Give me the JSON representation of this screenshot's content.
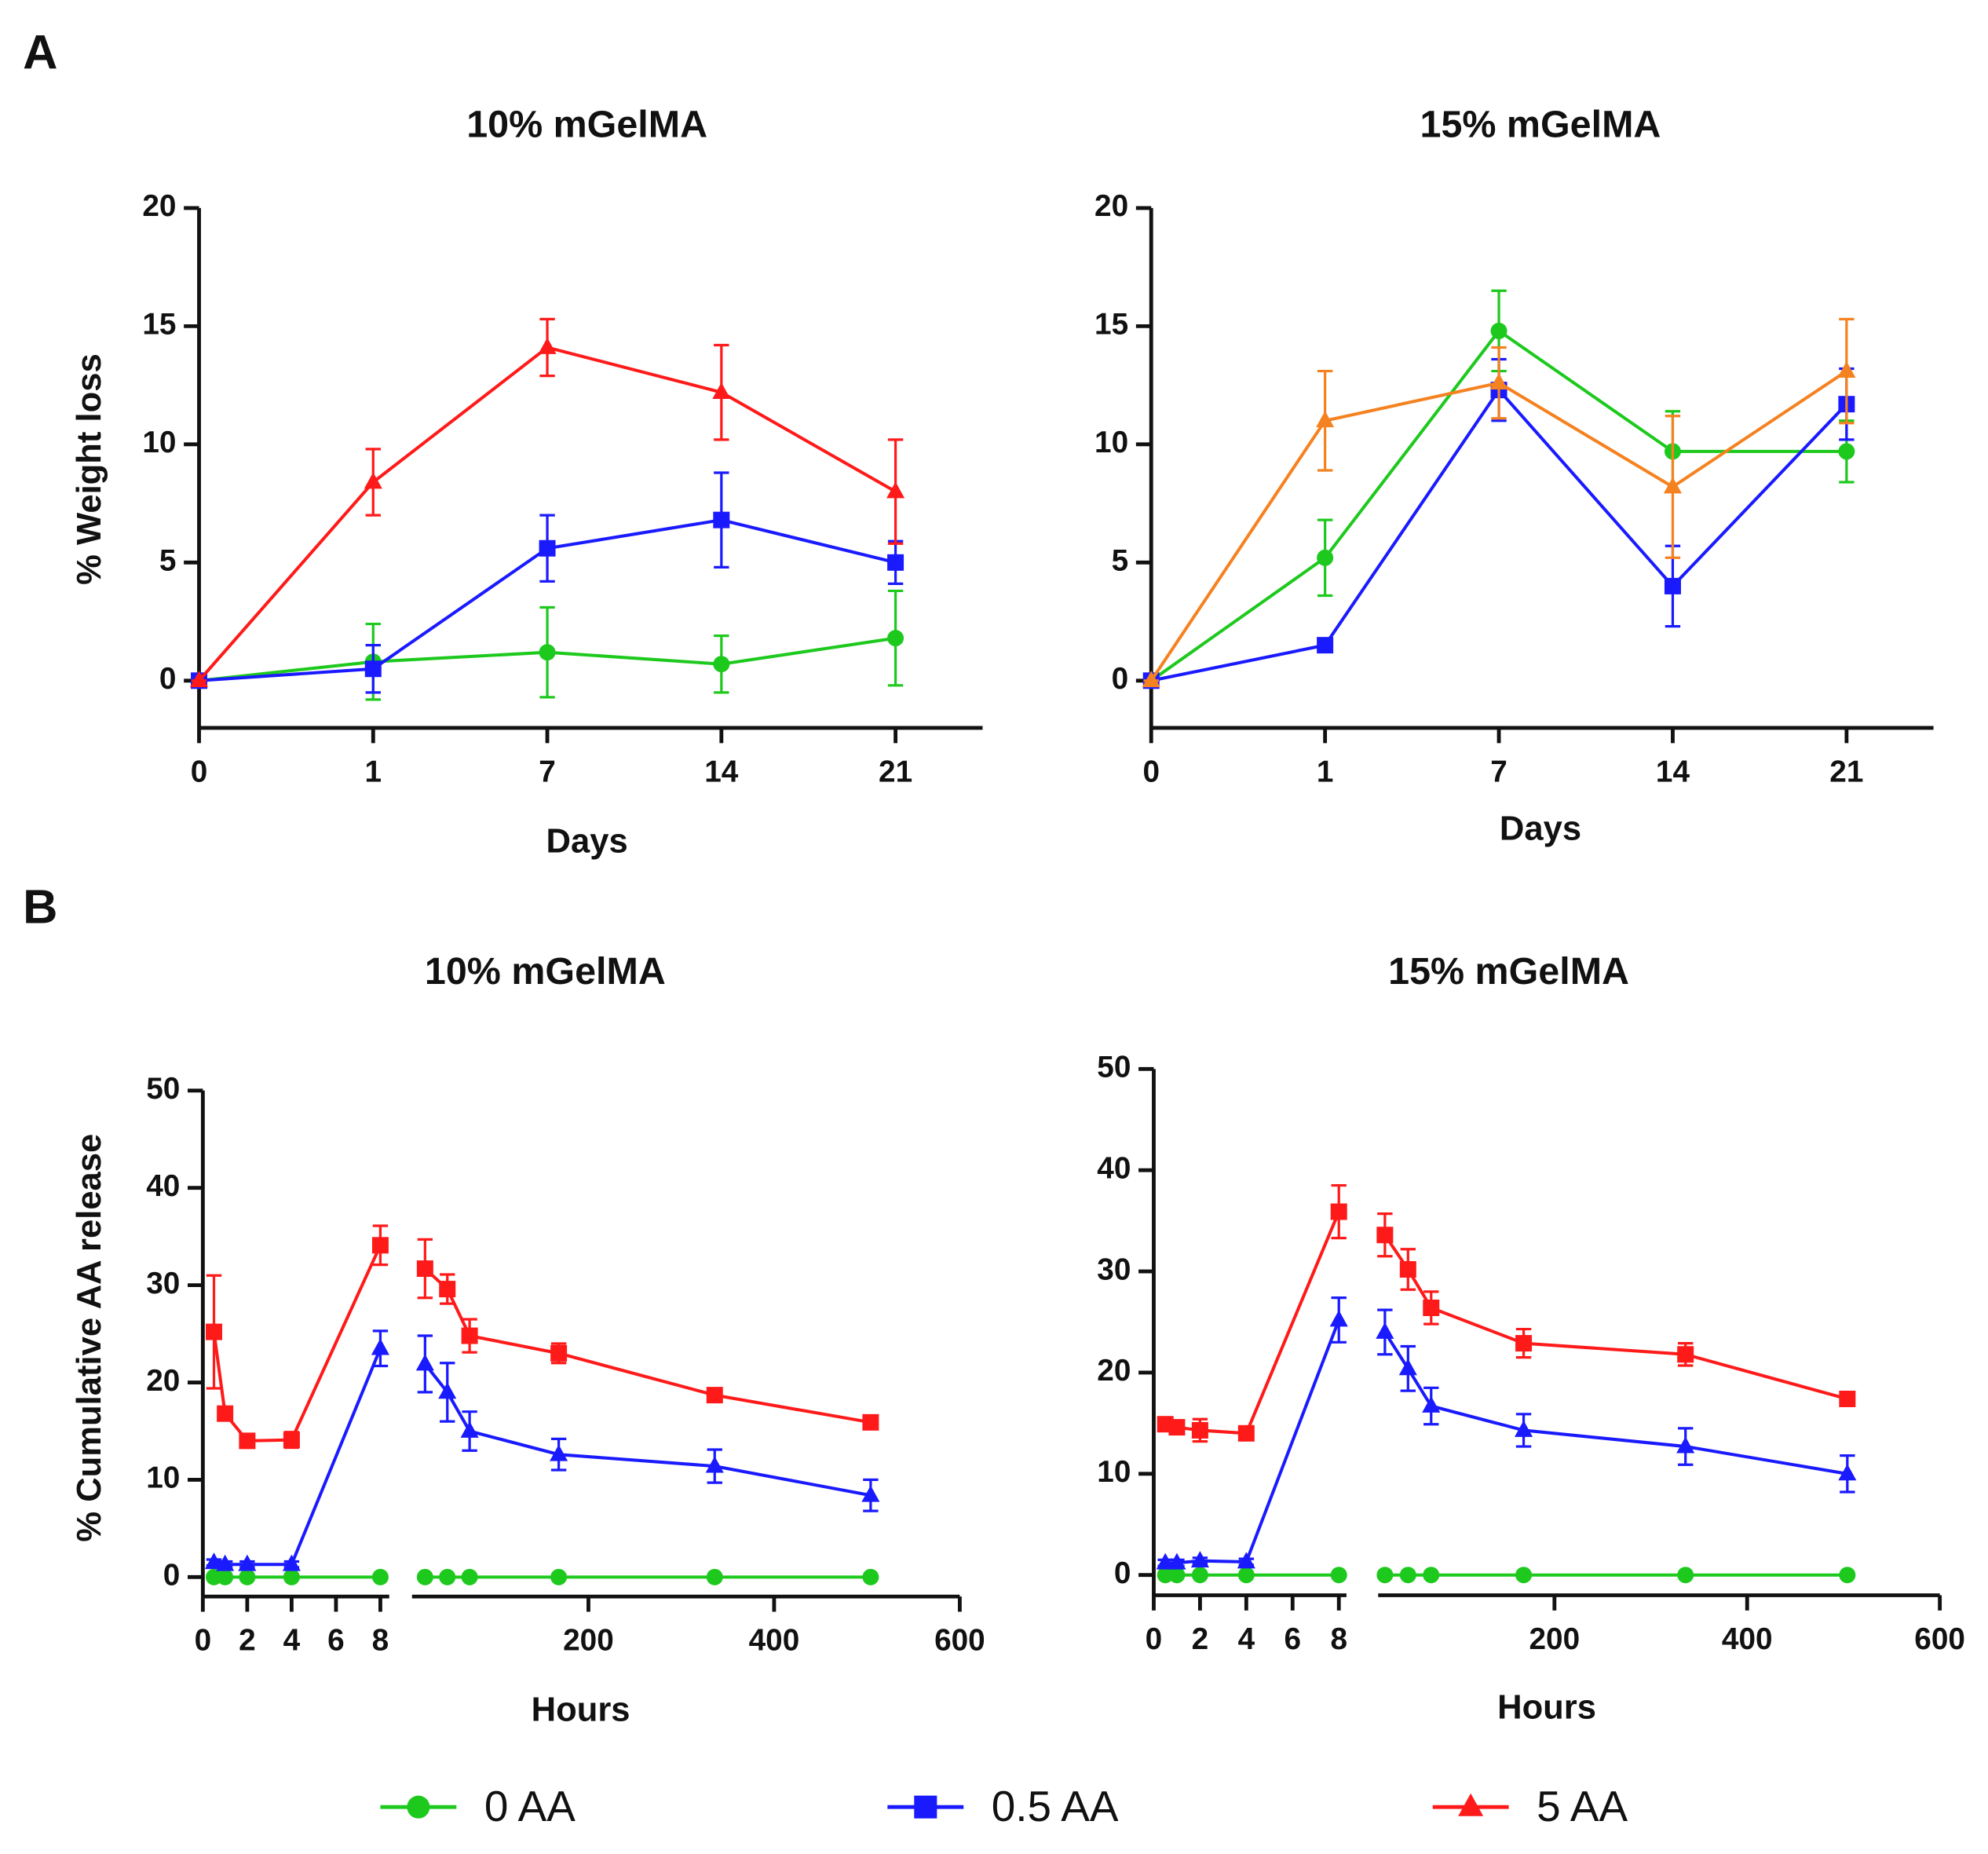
{
  "panel_labels": [
    "A",
    "B"
  ],
  "legend": [
    {
      "name": "0 AA",
      "color": "#1ec91e",
      "marker": "circle"
    },
    {
      "name": "0.5 AA",
      "color": "#1a1aff",
      "marker": "square"
    },
    {
      "name": "5 AA",
      "color": "#ff1a1a",
      "marker": "triangle"
    }
  ],
  "chart_data": [
    {
      "type": "line",
      "title": "10% mGelMA",
      "x_label": "Days",
      "y_label": "% Weight loss",
      "categories": [
        "0",
        "1",
        "7",
        "14",
        "21"
      ],
      "ylim": [
        -2,
        20
      ],
      "yticks": [
        0,
        5,
        10,
        15,
        20
      ],
      "series": [
        {
          "color": "#1ec91e",
          "marker": "circle",
          "values": [
            0,
            0.8,
            1.2,
            0.7,
            1.8
          ],
          "errors": [
            0,
            1.6,
            1.9,
            1.2,
            2.0
          ]
        },
        {
          "color": "#1a1aff",
          "marker": "square",
          "values": [
            0,
            0.5,
            5.6,
            6.8,
            5.0
          ],
          "errors": [
            0,
            1.0,
            1.4,
            2.0,
            0.9
          ]
        },
        {
          "color": "#ff1a1a",
          "marker": "triangle",
          "values": [
            0,
            8.4,
            14.1,
            12.2,
            8.0
          ],
          "errors": [
            0,
            1.4,
            1.2,
            2.0,
            2.2
          ]
        }
      ]
    },
    {
      "type": "line",
      "title": "15% mGelMA",
      "x_label": "Days",
      "categories": [
        "0",
        "1",
        "7",
        "14",
        "21"
      ],
      "ylim": [
        -2,
        20
      ],
      "yticks": [
        0,
        5,
        10,
        15,
        20
      ],
      "series": [
        {
          "color": "#1ec91e",
          "marker": "circle",
          "values": [
            0,
            5.2,
            14.8,
            9.7,
            9.7
          ],
          "errors": [
            0,
            1.6,
            1.7,
            1.7,
            1.3
          ]
        },
        {
          "color": "#1a1aff",
          "marker": "square",
          "values": [
            0,
            1.5,
            12.3,
            4.0,
            11.7
          ],
          "errors": [
            0,
            0.1,
            1.3,
            1.7,
            1.5
          ]
        },
        {
          "color": "#f58220",
          "marker": "triangle",
          "values": [
            0,
            11.0,
            12.6,
            8.2,
            13.1
          ],
          "errors": [
            0,
            2.1,
            1.5,
            3.0,
            2.2
          ]
        }
      ]
    },
    {
      "type": "line",
      "title": "10% mGelMA",
      "x_label": "Hours",
      "y_label": "% Cumulative AA release",
      "x": [
        0.5,
        1,
        2,
        4,
        8,
        24,
        48,
        72,
        168,
        336,
        504
      ],
      "xsegments": [
        {
          "xlim": [
            0,
            8
          ],
          "xticks": [
            0,
            2,
            4,
            6,
            8
          ]
        },
        {
          "xlim": [
            10,
            600
          ],
          "xticks": [
            200,
            400,
            600
          ]
        }
      ],
      "ylim": [
        -2,
        50
      ],
      "yticks": [
        0,
        10,
        20,
        30,
        40,
        50
      ],
      "series": [
        {
          "color": "#1ec91e",
          "marker": "circle",
          "values": [
            0,
            0,
            0,
            0,
            0,
            0,
            0,
            0,
            0,
            0,
            0
          ],
          "errors": [
            0,
            0,
            0,
            0,
            0,
            0,
            0,
            0,
            0,
            0,
            0
          ]
        },
        {
          "color": "#1a1aff",
          "marker": "triangle",
          "values": [
            1.5,
            1.3,
            1.3,
            1.3,
            23.5,
            21.9,
            19.0,
            15.0,
            12.6,
            11.4,
            8.4
          ],
          "errors": [
            0.3,
            0.3,
            0.3,
            0.3,
            1.8,
            2.9,
            3.0,
            2.0,
            1.6,
            1.7,
            1.6
          ]
        },
        {
          "color": "#ff1a1a",
          "marker": "square",
          "values": [
            25.2,
            16.8,
            14.0,
            14.1,
            34.1,
            31.7,
            29.6,
            24.8,
            23.0,
            18.7,
            15.9
          ],
          "errors": [
            5.8,
            0.5,
            0.3,
            0.8,
            2.0,
            3.0,
            1.5,
            1.7,
            1.0,
            0.3,
            0.3
          ]
        }
      ]
    },
    {
      "type": "line",
      "title": "15% mGelMA",
      "x_label": "Hours",
      "x": [
        0.5,
        1,
        2,
        4,
        8,
        24,
        48,
        72,
        168,
        336,
        504
      ],
      "xsegments": [
        {
          "xlim": [
            0,
            8
          ],
          "xticks": [
            0,
            2,
            4,
            6,
            8
          ]
        },
        {
          "xlim": [
            17,
            600
          ],
          "xticks": [
            200,
            400,
            600
          ]
        }
      ],
      "ylim": [
        -2,
        50
      ],
      "yticks": [
        0,
        10,
        20,
        30,
        40,
        50
      ],
      "series": [
        {
          "color": "#1ec91e",
          "marker": "circle",
          "values": [
            0,
            0,
            0,
            0,
            0,
            0,
            0,
            0,
            0,
            0,
            0
          ],
          "errors": [
            0,
            0,
            0,
            0,
            0,
            0,
            0,
            0,
            0,
            0,
            0
          ]
        },
        {
          "color": "#1a1aff",
          "marker": "triangle",
          "values": [
            1.2,
            1.2,
            1.4,
            1.3,
            25.2,
            24.0,
            20.4,
            16.7,
            14.3,
            12.7,
            10.0
          ],
          "errors": [
            0.3,
            0.3,
            0.3,
            0.3,
            2.2,
            2.2,
            2.2,
            1.8,
            1.6,
            1.8,
            1.8
          ]
        },
        {
          "color": "#ff1a1a",
          "marker": "square",
          "values": [
            14.9,
            14.6,
            14.3,
            14.0,
            35.9,
            33.6,
            30.2,
            26.4,
            22.9,
            21.8,
            17.4
          ],
          "errors": [
            0.3,
            0.3,
            1.1,
            0.3,
            2.6,
            2.1,
            2.0,
            1.6,
            1.4,
            1.1,
            0.3
          ]
        }
      ]
    }
  ]
}
